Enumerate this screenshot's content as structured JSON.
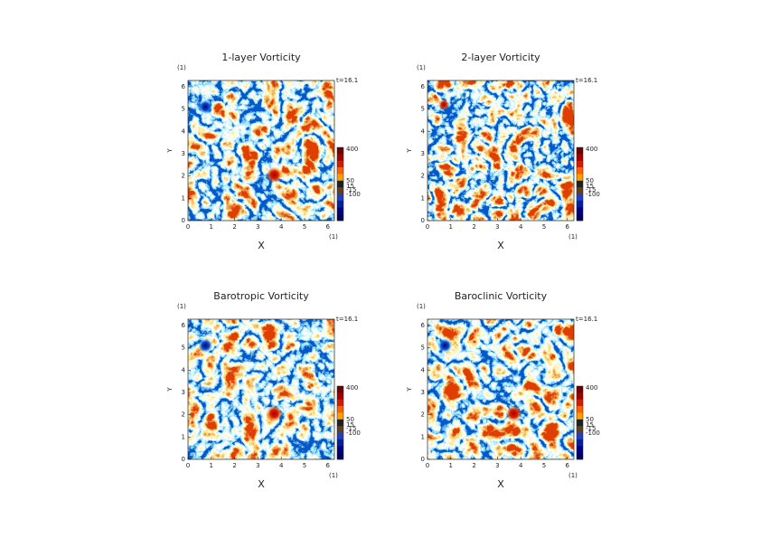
{
  "chart_data": [
    {
      "type": "heatmap",
      "title": "1-layer Vorticity",
      "xlabel": "X",
      "ylabel": "Y",
      "x_unit": "(1)",
      "y_unit": "(1)",
      "time_label": "t=16.1",
      "xlim": [
        0,
        6.28
      ],
      "ylim": [
        0,
        6.28
      ],
      "xticks": [
        0,
        1,
        2,
        3,
        4,
        5,
        6
      ],
      "yticks": [
        0,
        1,
        2,
        3,
        4,
        5,
        6
      ],
      "colorbar_ticks": [
        400,
        50,
        15,
        -15,
        -100
      ]
    },
    {
      "type": "heatmap",
      "title": "2-layer Vorticity",
      "xlabel": "X",
      "ylabel": "Y",
      "x_unit": "(1)",
      "y_unit": "(1)",
      "time_label": "t=16.1",
      "xlim": [
        0,
        6.28
      ],
      "ylim": [
        0,
        6.28
      ],
      "xticks": [
        0,
        1,
        2,
        3,
        4,
        5,
        6
      ],
      "yticks": [
        0,
        1,
        2,
        3,
        4,
        5,
        6
      ],
      "colorbar_ticks": [
        400,
        50,
        15,
        -15,
        -100
      ]
    },
    {
      "type": "heatmap",
      "title": "Barotropic Vorticity",
      "xlabel": "X",
      "ylabel": "Y",
      "x_unit": "(1)",
      "y_unit": "(1)",
      "time_label": "t=16.1",
      "xlim": [
        0,
        6.28
      ],
      "ylim": [
        0,
        6.28
      ],
      "xticks": [
        0,
        1,
        2,
        3,
        4,
        5,
        6
      ],
      "yticks": [
        0,
        1,
        2,
        3,
        4,
        5,
        6
      ],
      "colorbar_ticks": [
        400,
        50,
        15,
        -15,
        -100
      ]
    },
    {
      "type": "heatmap",
      "title": "Baroclinic Vorticity",
      "xlabel": "X",
      "ylabel": "Y",
      "x_unit": "(1)",
      "y_unit": "(1)",
      "time_label": "t=16.1",
      "xlim": [
        0,
        6.28
      ],
      "ylim": [
        0,
        6.28
      ],
      "xticks": [
        0,
        1,
        2,
        3,
        4,
        5,
        6
      ],
      "yticks": [
        0,
        1,
        2,
        3,
        4,
        5,
        6
      ],
      "colorbar_ticks": [
        400,
        50,
        15,
        -15,
        -100
      ]
    }
  ]
}
